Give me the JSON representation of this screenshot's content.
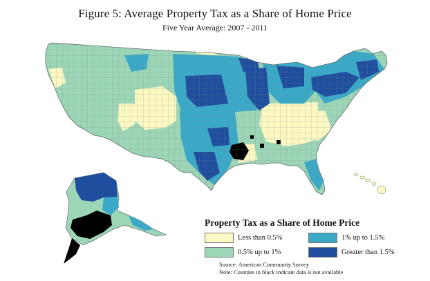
{
  "header": {
    "title": "Figure 5: Average Property Tax as a Share of Home Price",
    "subtitle": "Five Year Average: 2007 - 2011"
  },
  "legend": {
    "title": "Property Tax as a Share of Home Price",
    "items": [
      {
        "label": "Less than 0.5%",
        "color": "#fbf8c2"
      },
      {
        "label": "1% up to 1.5%",
        "color": "#3aa9c8"
      },
      {
        "label": "0.5% up to 1%",
        "color": "#9dd6b7"
      },
      {
        "label": "Greater than 1.5%",
        "color": "#1f4e9e"
      }
    ]
  },
  "no_data_color": "#000000",
  "source": {
    "line1": "Source: American Community Survey",
    "line2": "Note: Counties in black indicate data is not available"
  }
}
